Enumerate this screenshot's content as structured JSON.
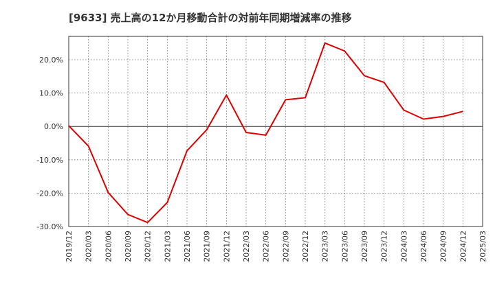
{
  "chart_data": {
    "type": "line",
    "title": "[9633]  売上高の12か月移動合計の対前年同期増減率の推移",
    "xlabel": "",
    "ylabel": "",
    "ylim": [
      -30,
      27
    ],
    "yticks": [
      20,
      10,
      0,
      -10,
      -20,
      -30
    ],
    "ytick_labels": [
      "20.0%",
      "10.0%",
      "0.0%",
      "-10.0%",
      "-20.0%",
      "-30.0%"
    ],
    "x_tick_labels": [
      "2019/12",
      "2020/03",
      "2020/06",
      "2020/09",
      "2020/12",
      "2021/03",
      "2021/06",
      "2021/09",
      "2021/12",
      "2022/03",
      "2022/06",
      "2022/09",
      "2022/12",
      "2023/03",
      "2023/06",
      "2023/09",
      "2023/12",
      "2024/03",
      "2024/06",
      "2024/09",
      "2024/12",
      "2025/03"
    ],
    "grid": true,
    "series": [
      {
        "name": "売上高の12か月移動合計の対前年同期増減率",
        "color": "#dd0000",
        "x": [
          "2019/12",
          "2020/03",
          "2020/06",
          "2020/09",
          "2020/12",
          "2021/03",
          "2021/06",
          "2021/09",
          "2021/12",
          "2022/03",
          "2022/06",
          "2022/09",
          "2022/12",
          "2023/03",
          "2023/06",
          "2023/09",
          "2023/12",
          "2024/03",
          "2024/06",
          "2024/09",
          "2024/12"
        ],
        "values": [
          0.2,
          -5.9,
          -19.8,
          -26.4,
          -28.8,
          -22.8,
          -7.3,
          -1.0,
          9.4,
          -1.8,
          -2.6,
          8.0,
          8.6,
          25.0,
          22.6,
          15.2,
          13.2,
          4.9,
          2.2,
          3.0,
          4.5
        ]
      }
    ]
  }
}
